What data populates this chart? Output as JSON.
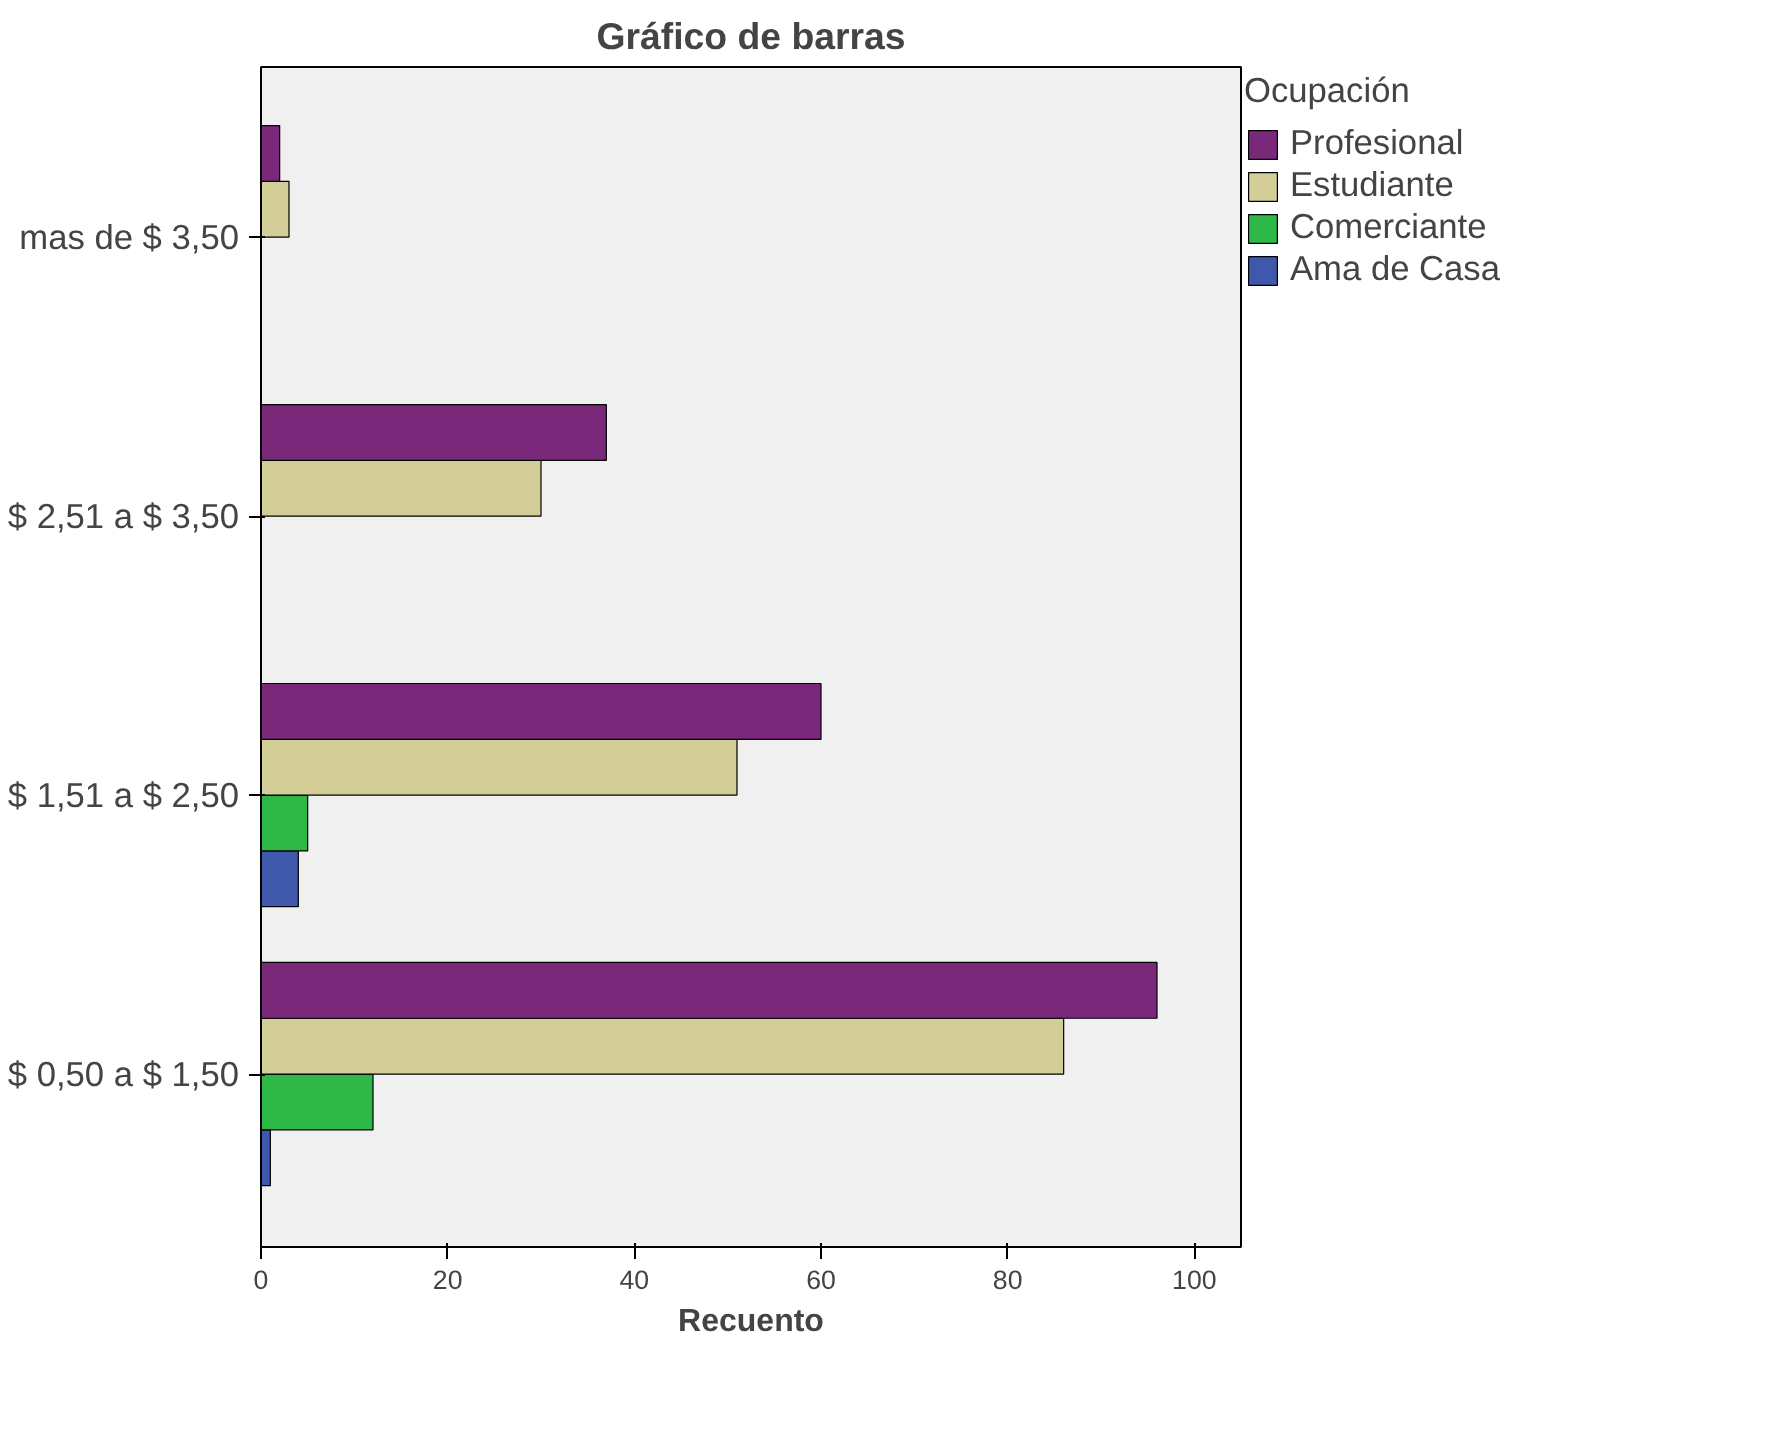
{
  "chart_data": {
    "type": "bar",
    "orientation": "horizontal",
    "title": "Gráfico de barras",
    "xlabel": "Recuento",
    "legend_title": "Ocupación",
    "legend": "right",
    "grid": false,
    "categories": [
      "mas de $ 3,50",
      "$ 2,51 a $ 3,50",
      "$ 1,51 a $ 2,50",
      "$ 0,50 a $ 1,50"
    ],
    "series": [
      {
        "name": "Ama de Casa",
        "color": "#3e58ac",
        "values": [
          null,
          null,
          4,
          1
        ]
      },
      {
        "name": "Comerciante",
        "color": "#2eb848",
        "values": [
          null,
          null,
          5,
          12
        ]
      },
      {
        "name": "Estudiante",
        "color": "#d3ce97",
        "values": [
          3,
          30,
          51,
          86
        ]
      },
      {
        "name": "Profesional",
        "color": "#79287a",
        "values": [
          2,
          37,
          60,
          96
        ]
      }
    ],
    "xlim": [
      0,
      105
    ],
    "xticks": [
      0,
      20,
      40,
      60,
      80,
      100
    ]
  }
}
